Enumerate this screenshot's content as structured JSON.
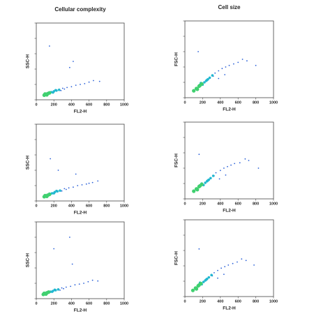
{
  "chart_data": [
    {
      "type": "scatter",
      "title": "Cellular complexity",
      "xlabel": "FL2-H",
      "ylabel": "SSC-H",
      "xlim": [
        0,
        1000
      ],
      "ylim": [
        0,
        1000
      ],
      "xticks": [
        0,
        200,
        400,
        600,
        800,
        1000
      ],
      "yticks": [
        0,
        200,
        400,
        600,
        800,
        1000
      ],
      "series": [
        {
          "color": "#2a60d8",
          "x": [
            300,
            350,
            400,
            450,
            500,
            550,
            600,
            280,
            320,
            150,
            420,
            650,
            720,
            380
          ],
          "y": [
            150,
            160,
            170,
            190,
            200,
            210,
            230,
            120,
            140,
            700,
            500,
            250,
            240,
            420
          ]
        },
        {
          "color": "#22b8d0",
          "x": [
            170,
            200,
            230,
            260,
            150,
            190,
            140,
            220
          ],
          "y": [
            100,
            110,
            120,
            130,
            85,
            95,
            90,
            125
          ]
        },
        {
          "color": "#40d070",
          "x": [
            90,
            110,
            130,
            150,
            120,
            100
          ],
          "y": [
            60,
            70,
            80,
            90,
            65,
            75
          ]
        }
      ]
    },
    {
      "type": "scatter",
      "title": "Cell size",
      "xlabel": "FL2-H",
      "ylabel": "FSC-H",
      "xlim": [
        0,
        1000
      ],
      "ylim": [
        0,
        1000
      ],
      "xticks": [
        0,
        200,
        400,
        600,
        800,
        1000
      ],
      "yticks": [
        0,
        200,
        400,
        600,
        800,
        1000
      ],
      "series": [
        {
          "color": "#2a60d8",
          "x": [
            340,
            380,
            420,
            460,
            500,
            550,
            600,
            700,
            320,
            150,
            800,
            450,
            650,
            380
          ],
          "y": [
            320,
            350,
            380,
            400,
            420,
            440,
            460,
            480,
            280,
            600,
            420,
            300,
            500,
            250
          ]
        },
        {
          "color": "#22b8d0",
          "x": [
            220,
            250,
            280,
            310,
            200,
            240,
            180,
            260
          ],
          "y": [
            200,
            230,
            260,
            290,
            170,
            220,
            190,
            240
          ]
        },
        {
          "color": "#40d070",
          "x": [
            100,
            130,
            160,
            190,
            140,
            170
          ],
          "y": [
            90,
            120,
            150,
            180,
            110,
            160
          ]
        }
      ]
    },
    {
      "type": "scatter",
      "xlabel": "FL2-H",
      "ylabel": "SSC-H",
      "xlim": [
        0,
        1000
      ],
      "ylim": [
        0,
        1000
      ],
      "xticks": [
        0,
        200,
        400,
        600,
        800,
        1000
      ],
      "yticks": [
        0,
        200,
        400,
        600,
        800,
        1000
      ],
      "series": [
        {
          "color": "#2a60d8",
          "x": [
            320,
            370,
            420,
            470,
            520,
            570,
            640,
            290,
            340,
            160,
            450,
            700,
            600,
            250
          ],
          "y": [
            160,
            170,
            180,
            200,
            210,
            220,
            240,
            130,
            150,
            550,
            350,
            260,
            230,
            400
          ]
        },
        {
          "color": "#22b8d0",
          "x": [
            180,
            210,
            240,
            270,
            160,
            200,
            150,
            230
          ],
          "y": [
            100,
            115,
            125,
            135,
            90,
            100,
            95,
            130
          ]
        },
        {
          "color": "#40d070",
          "x": [
            90,
            110,
            130,
            150,
            120,
            100
          ],
          "y": [
            55,
            65,
            75,
            85,
            60,
            70
          ]
        }
      ]
    },
    {
      "type": "scatter",
      "xlabel": "FL2-H",
      "ylabel": "FSC-H",
      "xlim": [
        0,
        1000
      ],
      "ylim": [
        0,
        1000
      ],
      "xticks": [
        0,
        200,
        400,
        600,
        800,
        1000
      ],
      "yticks": [
        0,
        200,
        400,
        600,
        800,
        1000
      ],
      "series": [
        {
          "color": "#2a60d8",
          "x": [
            350,
            400,
            440,
            480,
            520,
            560,
            620,
            720,
            330,
            160,
            830,
            460,
            680,
            390
          ],
          "y": [
            340,
            370,
            400,
            420,
            440,
            460,
            470,
            500,
            300,
            580,
            400,
            310,
            520,
            260
          ]
        },
        {
          "color": "#22b8d0",
          "x": [
            230,
            260,
            290,
            320,
            210,
            250,
            190,
            270
          ],
          "y": [
            210,
            240,
            270,
            300,
            180,
            230,
            200,
            250
          ]
        },
        {
          "color": "#40d070",
          "x": [
            100,
            130,
            160,
            190,
            140,
            170
          ],
          "y": [
            100,
            130,
            160,
            190,
            120,
            170
          ]
        }
      ]
    },
    {
      "type": "scatter",
      "xlabel": "FL2-H",
      "ylabel": "SSC-H",
      "xlim": [
        0,
        1000
      ],
      "ylim": [
        0,
        1000
      ],
      "xticks": [
        0,
        200,
        400,
        600,
        800,
        1000
      ],
      "yticks": [
        0,
        200,
        400,
        600,
        800,
        1000
      ],
      "series": [
        {
          "color": "#2a60d8",
          "x": [
            290,
            340,
            390,
            440,
            490,
            540,
            590,
            270,
            310,
            200,
            410,
            640,
            700,
            380
          ],
          "y": [
            140,
            150,
            160,
            180,
            190,
            200,
            220,
            110,
            130,
            650,
            450,
            240,
            230,
            800
          ]
        },
        {
          "color": "#22b8d0",
          "x": [
            160,
            190,
            220,
            250,
            140,
            180,
            130,
            210
          ],
          "y": [
            90,
            100,
            110,
            120,
            80,
            90,
            85,
            115
          ]
        },
        {
          "color": "#40d070",
          "x": [
            80,
            100,
            120,
            140,
            110,
            90
          ],
          "y": [
            55,
            65,
            75,
            85,
            60,
            70
          ]
        }
      ]
    },
    {
      "type": "scatter",
      "xlabel": "FL2-H",
      "ylabel": "FSC-H",
      "xlim": [
        0,
        1000
      ],
      "ylim": [
        0,
        1000
      ],
      "xticks": [
        0,
        200,
        400,
        600,
        800,
        1000
      ],
      "yticks": [
        0,
        200,
        400,
        600,
        800,
        1000
      ],
      "series": [
        {
          "color": "#2a60d8",
          "x": [
            330,
            370,
            410,
            450,
            490,
            540,
            590,
            690,
            310,
            160,
            780,
            440,
            640,
            370
          ],
          "y": [
            310,
            340,
            370,
            390,
            410,
            430,
            450,
            470,
            270,
            620,
            410,
            290,
            490,
            240
          ]
        },
        {
          "color": "#22b8d0",
          "x": [
            210,
            240,
            270,
            300,
            190,
            230,
            170,
            250
          ],
          "y": [
            190,
            220,
            250,
            280,
            160,
            210,
            180,
            230
          ]
        },
        {
          "color": "#40d070",
          "x": [
            90,
            120,
            150,
            180,
            130,
            160
          ],
          "y": [
            80,
            110,
            140,
            170,
            100,
            150
          ]
        }
      ]
    }
  ]
}
